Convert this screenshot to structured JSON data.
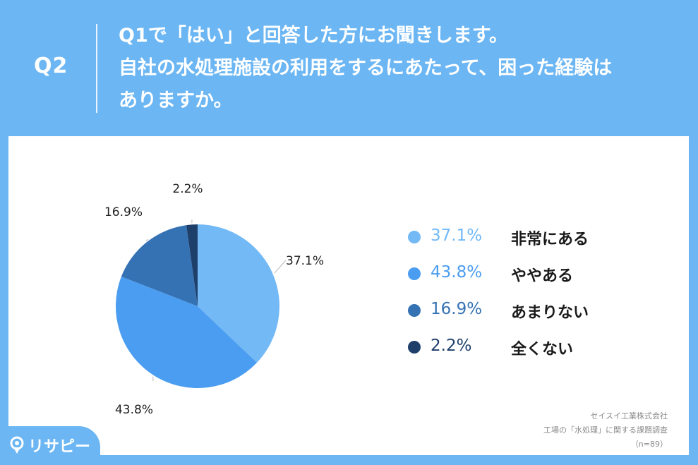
{
  "header": {
    "question_number": "Q2",
    "question_lines": [
      "Q1で「はい」と回答した方にお聞きします。",
      "自社の水処理施設の利用をするにあたって、困った経験は",
      "ありますか。"
    ]
  },
  "chart_data": {
    "type": "pie",
    "categories": [
      "非常にある",
      "ややある",
      "あまりない",
      "全くない"
    ],
    "values": [
      37.1,
      43.8,
      16.9,
      2.2
    ],
    "labels": [
      "37.1%",
      "43.8%",
      "16.9%",
      "2.2%"
    ],
    "colors": [
      "#72b9f6",
      "#4a9df0",
      "#3572b4",
      "#1e3f6a"
    ],
    "legend_position": "right"
  },
  "legend": {
    "items": [
      {
        "pct": "37.1%",
        "name": "非常にある"
      },
      {
        "pct": "43.8%",
        "name": "ややある"
      },
      {
        "pct": "16.9%",
        "name": "あまりない"
      },
      {
        "pct": "2.2%",
        "name": "全くない"
      }
    ]
  },
  "source": {
    "company": "セイスイ工業株式会社",
    "survey": "工場の「水処理」に関する課題調査",
    "sample": "（n=89）"
  },
  "logo": {
    "text": "リサピー",
    "icon": "pin-logo-icon"
  }
}
